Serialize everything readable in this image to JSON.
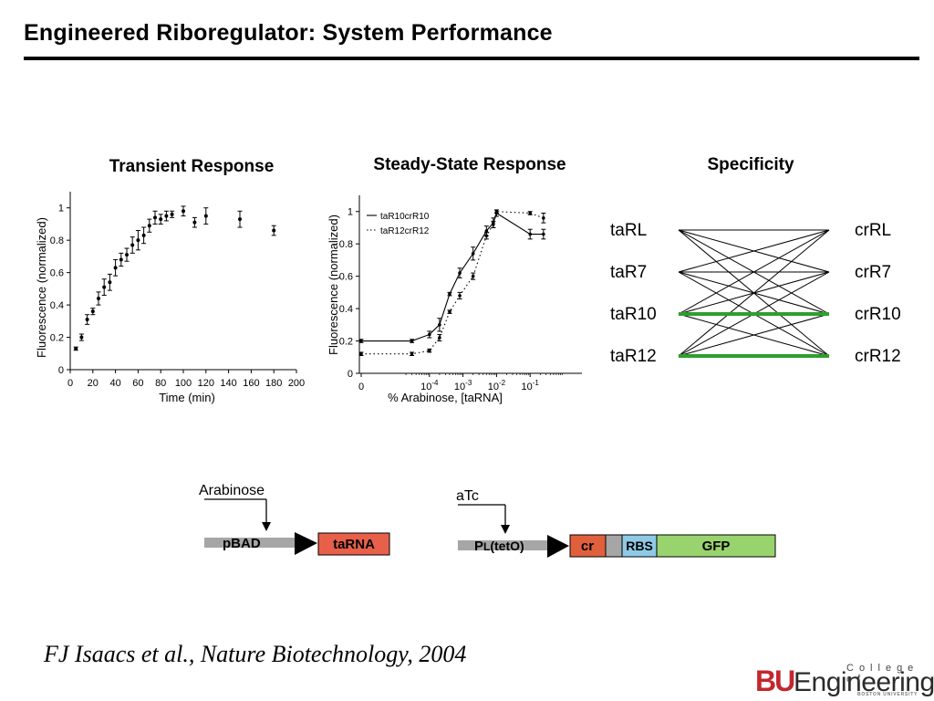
{
  "slide": {
    "title": "Engineered Riboregulator: System Performance",
    "citation": "FJ Isaacs et al., Nature Biotechnology, 2004"
  },
  "logo": {
    "bu": "BU",
    "engineering": "Engineering",
    "college": "College of",
    "university": "BOSTON UNIVERSITY"
  },
  "colors": {
    "green_line": "#2ca02c",
    "tarna_box": "#e8604a",
    "cr_box": "#e0603e",
    "rbs_box": "#8ecae6",
    "gfp_box": "#99d36e",
    "promoter_gray": "#a6a6a6",
    "brand_red": "#c3272e"
  },
  "panels": {
    "transient": "Transient Response",
    "steady": "Steady-State Response",
    "specificity": "Specificity"
  },
  "chart_data": [
    {
      "type": "scatter",
      "title": "Transient Response",
      "xlabel": "Time (min)",
      "ylabel": "Fluorescence (normalized)",
      "xlim": [
        0,
        200
      ],
      "ylim": [
        0,
        1.1
      ],
      "x_ticks": [
        "0",
        "20",
        "40",
        "60",
        "80",
        "100",
        "120",
        "140",
        "160",
        "180",
        "200"
      ],
      "y_ticks": [
        "0",
        "0.2",
        "0.4",
        "0.6",
        "0.8",
        "1"
      ],
      "points": [
        {
          "x": 5,
          "y": 0.13,
          "err": 0.01
        },
        {
          "x": 10,
          "y": 0.2,
          "err": 0.02
        },
        {
          "x": 15,
          "y": 0.31,
          "err": 0.03
        },
        {
          "x": 20,
          "y": 0.36,
          "err": 0.02
        },
        {
          "x": 25,
          "y": 0.44,
          "err": 0.04
        },
        {
          "x": 30,
          "y": 0.51,
          "err": 0.05
        },
        {
          "x": 35,
          "y": 0.54,
          "err": 0.05
        },
        {
          "x": 40,
          "y": 0.63,
          "err": 0.05
        },
        {
          "x": 45,
          "y": 0.68,
          "err": 0.04
        },
        {
          "x": 50,
          "y": 0.71,
          "err": 0.04
        },
        {
          "x": 55,
          "y": 0.77,
          "err": 0.05
        },
        {
          "x": 60,
          "y": 0.8,
          "err": 0.06
        },
        {
          "x": 65,
          "y": 0.83,
          "err": 0.05
        },
        {
          "x": 70,
          "y": 0.89,
          "err": 0.04
        },
        {
          "x": 75,
          "y": 0.94,
          "err": 0.04
        },
        {
          "x": 80,
          "y": 0.93,
          "err": 0.03
        },
        {
          "x": 85,
          "y": 0.95,
          "err": 0.03
        },
        {
          "x": 90,
          "y": 0.96,
          "err": 0.02
        },
        {
          "x": 100,
          "y": 0.98,
          "err": 0.03
        },
        {
          "x": 110,
          "y": 0.91,
          "err": 0.03
        },
        {
          "x": 120,
          "y": 0.95,
          "err": 0.05
        },
        {
          "x": 150,
          "y": 0.93,
          "err": 0.05
        },
        {
          "x": 180,
          "y": 0.86,
          "err": 0.03
        }
      ]
    },
    {
      "type": "line",
      "title": "Steady-State Response",
      "xlabel": "% Arabinose,  [taRNA]",
      "ylabel": "Fluorescence (normalized)",
      "x_scale": "log (with 0 on the left)",
      "ylim": [
        0,
        1.1
      ],
      "x_ticks": [
        {
          "base": "0",
          "exp": ""
        },
        {
          "base": "10",
          "exp": "-4"
        },
        {
          "base": "10",
          "exp": "-3"
        },
        {
          "base": "10",
          "exp": "-2"
        },
        {
          "base": "10",
          "exp": "-1"
        }
      ],
      "y_ticks": [
        "0",
        "0.2",
        "0.4",
        "0.6",
        "0.8",
        "1"
      ],
      "legend_position": "top-left",
      "series": [
        {
          "name": "taR10crR10",
          "style": "solid",
          "points": [
            {
              "x": "0",
              "y": 0.2,
              "err": 0.01
            },
            {
              "x": "3e-5",
              "y": 0.2,
              "err": 0.01
            },
            {
              "x": "1e-4",
              "y": 0.24,
              "err": 0.02
            },
            {
              "x": "2e-4",
              "y": 0.3,
              "err": 0.04
            },
            {
              "x": "4e-4",
              "y": 0.49,
              "err": 0.01
            },
            {
              "x": "8e-4",
              "y": 0.62,
              "err": 0.03
            },
            {
              "x": "2e-3",
              "y": 0.74,
              "err": 0.04
            },
            {
              "x": "5e-3",
              "y": 0.88,
              "err": 0.03
            },
            {
              "x": "8e-3",
              "y": 0.93,
              "err": 0.03
            },
            {
              "x": "1e-2",
              "y": 0.99,
              "err": 0.02
            },
            {
              "x": "1e-1",
              "y": 0.86,
              "err": 0.03
            },
            {
              "x": "2.5e-1",
              "y": 0.86,
              "err": 0.03
            }
          ]
        },
        {
          "name": "taR12crR12",
          "style": "dotted",
          "points": [
            {
              "x": "0",
              "y": 0.12,
              "err": 0.01
            },
            {
              "x": "3e-5",
              "y": 0.12,
              "err": 0.01
            },
            {
              "x": "1e-4",
              "y": 0.14,
              "err": 0.01
            },
            {
              "x": "2e-4",
              "y": 0.22,
              "err": 0.02
            },
            {
              "x": "4e-4",
              "y": 0.38,
              "err": 0.01
            },
            {
              "x": "8e-4",
              "y": 0.48,
              "err": 0.02
            },
            {
              "x": "2e-3",
              "y": 0.6,
              "err": 0.02
            },
            {
              "x": "5e-3",
              "y": 0.85,
              "err": 0.02
            },
            {
              "x": "8e-3",
              "y": 0.92,
              "err": 0.02
            },
            {
              "x": "1e-2",
              "y": 1.0,
              "err": 0.01
            },
            {
              "x": "1e-1",
              "y": 0.99,
              "err": 0.01
            },
            {
              "x": "2.5e-1",
              "y": 0.96,
              "err": 0.03
            }
          ]
        }
      ]
    }
  ],
  "specificity": {
    "left_labels": [
      "taRL",
      "taR7",
      "taR10",
      "taR12"
    ],
    "right_labels": [
      "crRL",
      "crR7",
      "crR10",
      "crR12"
    ],
    "connections": "all pairs",
    "highlighted": [
      [
        2,
        2
      ],
      [
        3,
        3
      ]
    ]
  },
  "constructs": {
    "arabinose": {
      "inducer": "Arabinose",
      "promoter": "pBAD",
      "gene": "taRNA"
    },
    "atc": {
      "inducer": "aTc",
      "promoter_main": "P",
      "promoter_l": "L",
      "promoter_sub": "(tetO)",
      "cr": "cr",
      "rbs": "RBS",
      "gfp": "GFP"
    }
  }
}
